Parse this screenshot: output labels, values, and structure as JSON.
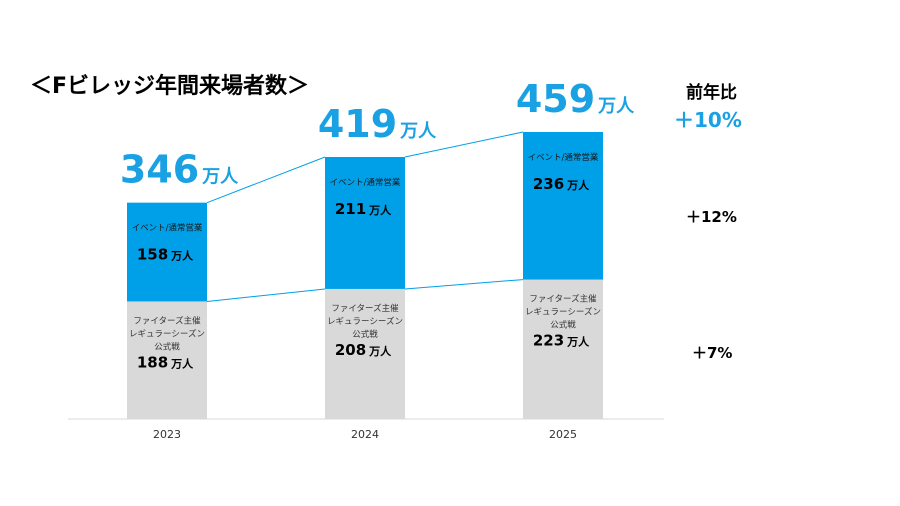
{
  "title": "＜Fビレッジ年間来場者数＞",
  "unit": "万人",
  "yoy": {
    "header": "前年比",
    "total": "＋10%",
    "event": "＋12%",
    "regular": "＋7%"
  },
  "chart_data": {
    "type": "bar",
    "stacked": true,
    "categories": [
      "2023",
      "2024",
      "2025"
    ],
    "series": [
      {
        "name": "ファイターズ主催レギュラーシーズン公式戦",
        "values": [
          188,
          208,
          223
        ],
        "color": "#d9d9d9",
        "label_lines": [
          "ファイターズ主催",
          "レギュラーシーズン",
          "公式戦"
        ]
      },
      {
        "name": "イベント/通常営業",
        "values": [
          158,
          211,
          236
        ],
        "color": "#00a0e9",
        "label_lines": [
          "イベント/通常営業"
        ]
      }
    ],
    "totals": [
      346,
      419,
      459
    ],
    "ylim": [
      0,
      459
    ]
  }
}
